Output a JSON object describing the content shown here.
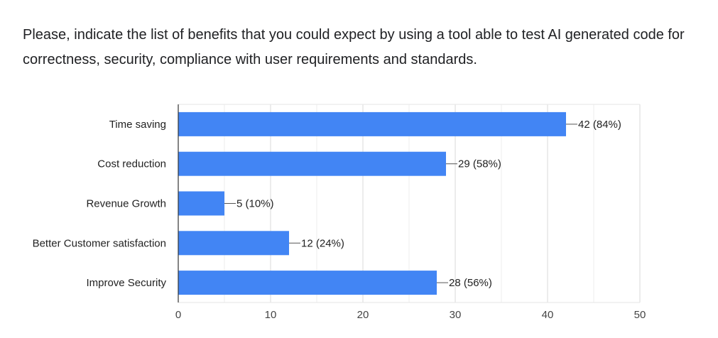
{
  "question": "Please, indicate the list of benefits that you could expect by using a tool able to test AI generated code for correctness, security, compliance with user requirements and standards.",
  "colors": {
    "bar": "#4285f4",
    "grid": "#e6e6e6",
    "axis": "#333333"
  },
  "chart_data": {
    "type": "bar",
    "orientation": "horizontal",
    "categories": [
      "Time saving",
      "Cost reduction",
      "Revenue Growth",
      "Better Customer satisfaction",
      "Improve Security"
    ],
    "values": [
      42,
      29,
      5,
      12,
      28
    ],
    "data_labels": [
      "42 (84%)",
      "29 (58%)",
      "5 (10%)",
      "12 (24%)",
      "28 (56%)"
    ],
    "xlim": [
      0,
      50
    ],
    "xticks": [
      "0",
      "10",
      "20",
      "30",
      "40",
      "50"
    ],
    "title": "",
    "xlabel": "",
    "ylabel": "",
    "grid": true
  }
}
